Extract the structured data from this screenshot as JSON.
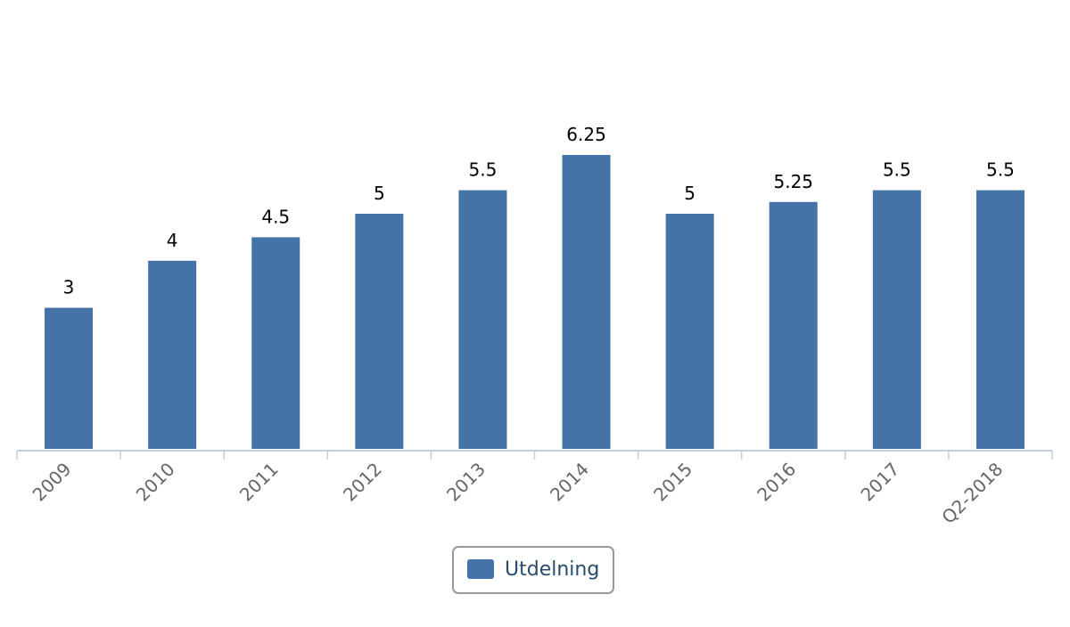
{
  "chart_data": {
    "type": "bar",
    "categories": [
      "2009",
      "2010",
      "2011",
      "2012",
      "2013",
      "2014",
      "2015",
      "2016",
      "2017",
      "Q2-2018"
    ],
    "series": [
      {
        "name": "Utdelning",
        "values": [
          3,
          4,
          4.5,
          5,
          5.5,
          6.25,
          5,
          5.25,
          5.5,
          5.5
        ]
      }
    ],
    "data_labels": [
      "3",
      "4",
      "4.5",
      "5",
      "5.5",
      "6.25",
      "5",
      "5.25",
      "5.5",
      "5.5"
    ],
    "ylim": [
      0,
      8.5
    ],
    "grid": false,
    "legend": "bottom-center",
    "bar_color": "#4572a7",
    "axis_color": "#c0d0e0"
  }
}
